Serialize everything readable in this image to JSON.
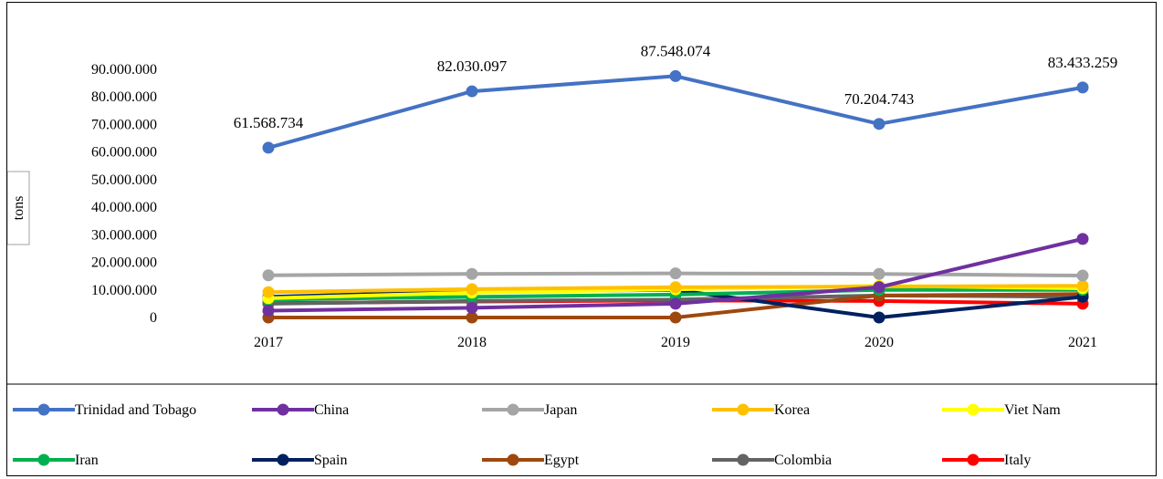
{
  "chart_data": {
    "type": "line",
    "title": "",
    "xlabel": "",
    "ylabel": "tons",
    "categories": [
      "2017",
      "2018",
      "2019",
      "2020",
      "2021"
    ],
    "ylim": [
      0,
      90000000
    ],
    "yticks": [
      0,
      10000000,
      20000000,
      30000000,
      40000000,
      50000000,
      60000000,
      70000000,
      80000000,
      90000000
    ],
    "ytick_labels": [
      "0",
      "10.000.000",
      "20.000.000",
      "30.000.000",
      "40.000.000",
      "50.000.000",
      "60.000.000",
      "70.000.000",
      "80.000.000",
      "90.000.000"
    ],
    "grid": false,
    "legend_position": "bottom",
    "series": [
      {
        "name": "Trinidad and Tobago",
        "color": "#4472C4",
        "values": [
          61568734,
          82030097,
          87548074,
          70204743,
          83433259
        ],
        "data_labels": [
          "61.568.734",
          "82.030.097",
          "87.548.074",
          "70.204.743",
          "83.433.259"
        ]
      },
      {
        "name": "China",
        "color": "#7030A0",
        "values": [
          2500000,
          3500000,
          5000000,
          11000000,
          28500000
        ]
      },
      {
        "name": "Japan",
        "color": "#A5A5A5",
        "values": [
          15300000,
          15800000,
          16000000,
          15800000,
          15200000
        ]
      },
      {
        "name": "Korea",
        "color": "#FFC000",
        "values": [
          9200000,
          10300000,
          11000000,
          11200000,
          11500000
        ]
      },
      {
        "name": "Viet Nam",
        "color": "#FFFF00",
        "values": [
          7000000,
          9000000,
          10200000,
          11500000,
          10600000
        ]
      },
      {
        "name": "Iran",
        "color": "#00B050",
        "values": [
          6500000,
          7500000,
          8300000,
          10000000,
          10000000
        ]
      },
      {
        "name": "Spain",
        "color": "#002060",
        "values": [
          7500000,
          9500000,
          10000000,
          0,
          7500000
        ]
      },
      {
        "name": "Egypt",
        "color": "#9E480E",
        "values": [
          0,
          0,
          0,
          8000000,
          8500000
        ]
      },
      {
        "name": "Colombia",
        "color": "#636363",
        "values": [
          5000000,
          6000000,
          6500000,
          8000000,
          7500000
        ]
      },
      {
        "name": "Italy",
        "color": "#FF0000",
        "values": [
          5200000,
          5800000,
          6200000,
          6000000,
          5000000
        ]
      }
    ]
  }
}
